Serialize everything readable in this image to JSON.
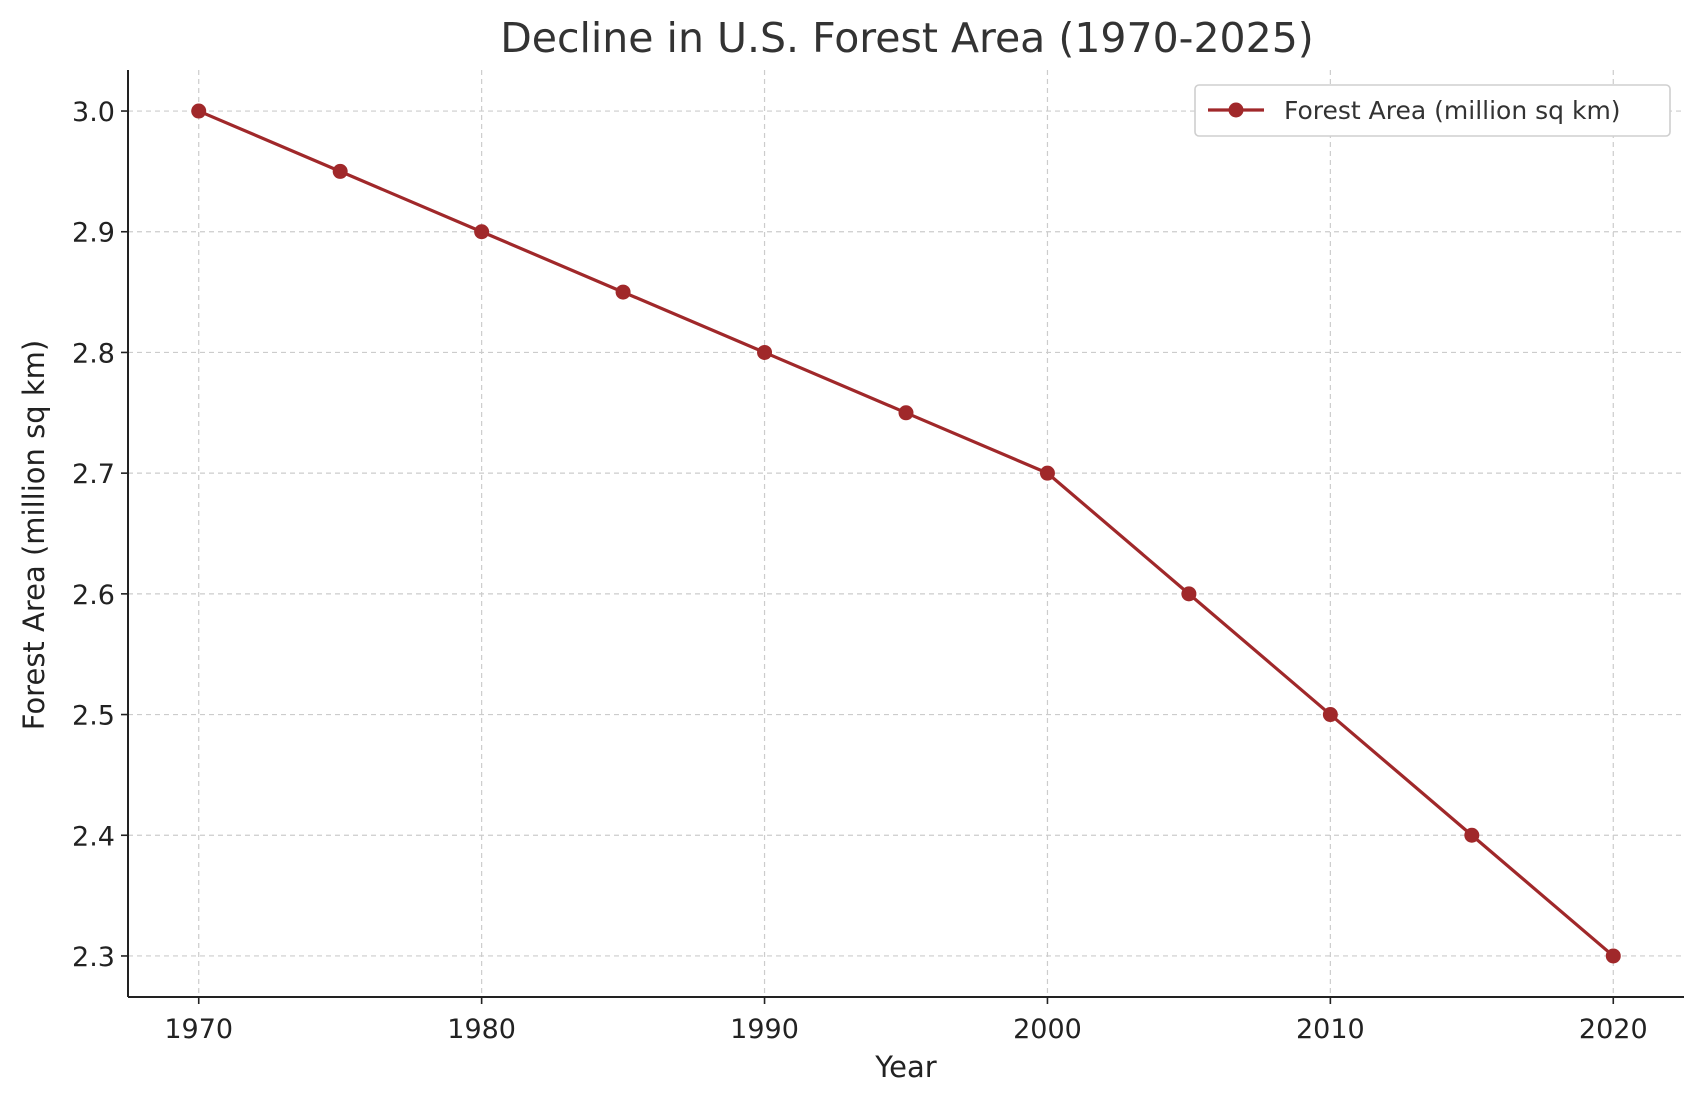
{
  "chart_data": {
    "type": "line",
    "title": "Decline in U.S. Forest Area (1970-2025)",
    "xlabel": "Year",
    "ylabel": "Forest Area (million sq km)",
    "x": [
      1970,
      1975,
      1980,
      1985,
      1990,
      1995,
      2000,
      2005,
      2010,
      2015,
      2020
    ],
    "series": [
      {
        "name": "Forest Area (million sq km)",
        "color": "#A0282A",
        "values": [
          3.0,
          2.95,
          2.9,
          2.85,
          2.8,
          2.75,
          2.7,
          2.6,
          2.5,
          2.4,
          2.3
        ]
      }
    ],
    "xlim": [
      1967.5,
      2022.5
    ],
    "ylim": [
      2.266,
      3.034
    ],
    "xticks": [
      1970,
      1980,
      1990,
      2000,
      2010,
      2020
    ],
    "xtick_labels": [
      "1970",
      "1980",
      "1990",
      "2000",
      "2010",
      "2020"
    ],
    "yticks": [
      2.3,
      2.4,
      2.5,
      2.6,
      2.7,
      2.8,
      2.9,
      3.0
    ],
    "ytick_labels": [
      "2.3",
      "2.4",
      "2.5",
      "2.6",
      "2.7",
      "2.8",
      "2.9",
      "3.0"
    ],
    "grid": true,
    "legend_position": "top-right",
    "marker": "circle"
  }
}
